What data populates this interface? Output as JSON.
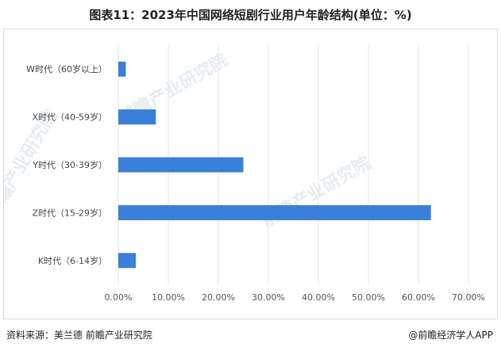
{
  "title": "图表11：2023年中国网络短剧行业用户年龄结构(单位：%)",
  "chart_data": {
    "type": "bar",
    "orientation": "horizontal",
    "categories": [
      "W时代（60岁以上）",
      "X时代（40-59岁）",
      "Y时代（30-39岁）",
      "Z时代（15-29岁）",
      "K时代（6-14岁）"
    ],
    "values": [
      1.5,
      7.5,
      25.0,
      62.5,
      3.5
    ],
    "xlim": [
      0,
      70
    ],
    "xticks": [
      "0.00%",
      "10.00%",
      "20.00%",
      "30.00%",
      "40.00%",
      "50.00%",
      "60.00%",
      "70.00%"
    ],
    "grid": "vertical",
    "bar_color": "#3a7fd9"
  },
  "footer": {
    "source": "资料来源：美兰德 前瞻产业研究院",
    "brand": "@前瞻经济学人APP"
  },
  "watermark": "前瞻产业研究院"
}
